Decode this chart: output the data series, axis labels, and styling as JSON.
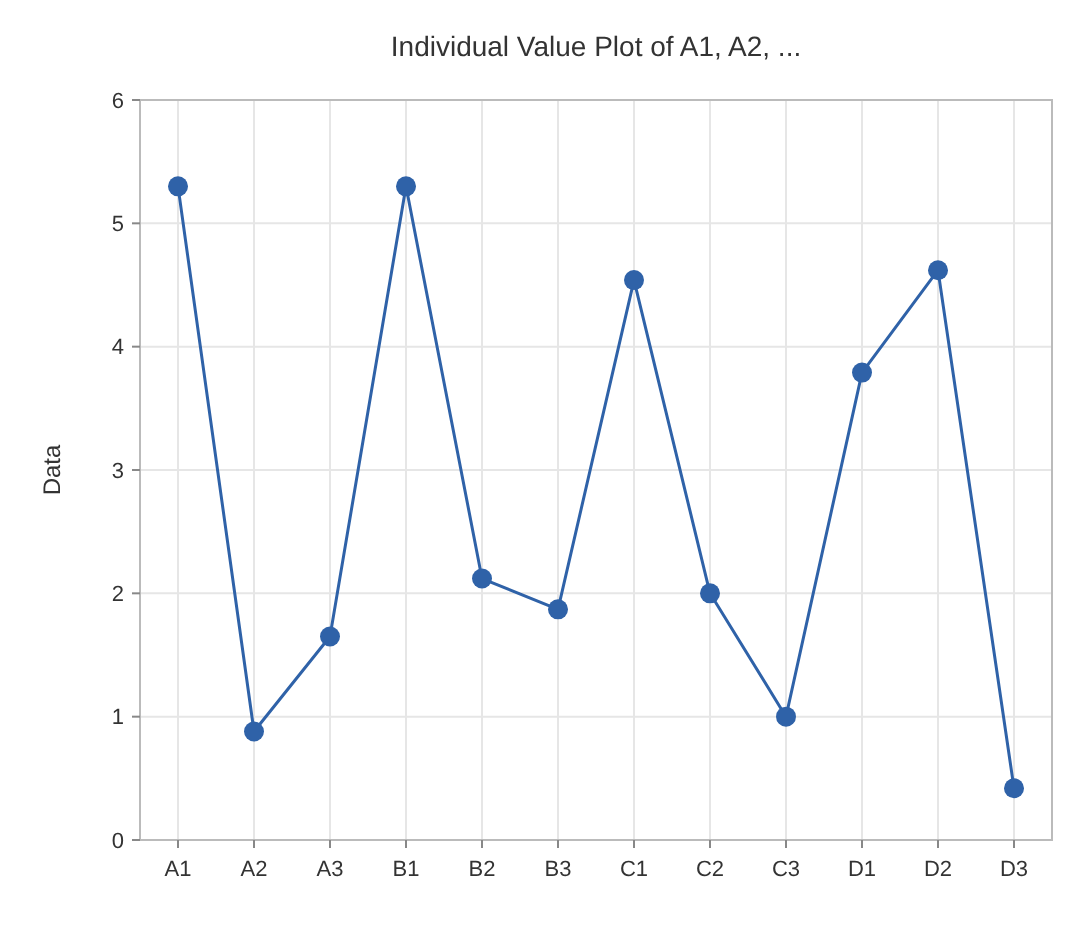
{
  "chart_data": {
    "type": "line",
    "title": "Individual Value Plot of A1, A2, ...",
    "ylabel": "Data",
    "categories": [
      "A1",
      "A2",
      "A3",
      "B1",
      "B2",
      "B3",
      "C1",
      "C2",
      "C3",
      "D1",
      "D2",
      "D3"
    ],
    "series": [
      {
        "color": "#2f62a8",
        "values": [
          5.3,
          0.88,
          1.65,
          5.3,
          2.12,
          1.87,
          4.54,
          2.0,
          1.0,
          3.79,
          4.62,
          0.42
        ]
      }
    ],
    "ylim": [
      0,
      6
    ],
    "yticks": [
      0,
      1,
      2,
      3,
      4,
      5,
      6
    ],
    "grid": true,
    "marker": "circle",
    "line_style": "solid"
  }
}
